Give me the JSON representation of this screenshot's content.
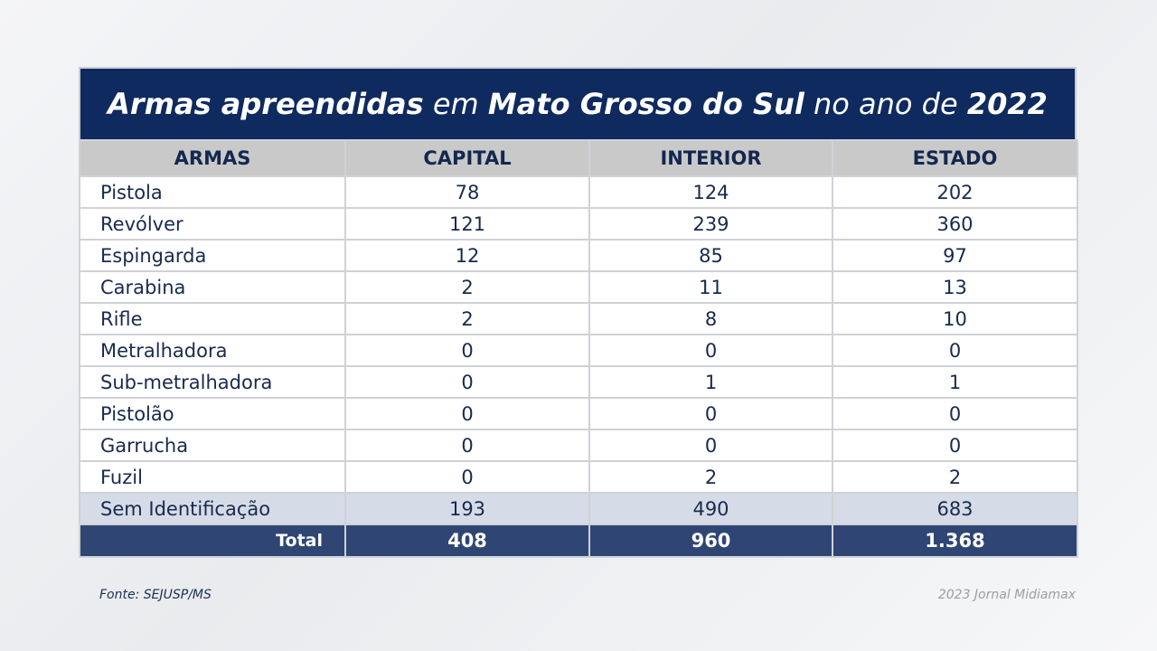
{
  "header": {
    "title": [
      "Armas apreendidas",
      "em",
      "Mato Grosso do Sul",
      "no ano de",
      "2022"
    ]
  },
  "table": {
    "columns": [
      "ARMAS",
      "CAPITAL",
      "INTERIOR",
      "ESTADO"
    ],
    "rows": [
      [
        "Pistola",
        78,
        124,
        202
      ],
      [
        "Revólver",
        121,
        239,
        360
      ],
      [
        "Espingarda",
        12,
        85,
        97
      ],
      [
        "Carabina",
        2,
        11,
        13
      ],
      [
        "Rifle",
        2,
        8,
        10
      ],
      [
        "Metralhadora",
        0,
        0,
        0
      ],
      [
        "Sub-metralhadora",
        0,
        1,
        1
      ],
      [
        "Pistolão",
        0,
        0,
        0
      ],
      [
        "Garrucha",
        0,
        0,
        0
      ],
      [
        "Fuzil",
        0,
        2,
        2
      ],
      [
        "Sem Identificação",
        193,
        490,
        683
      ]
    ],
    "total": [
      "Total",
      408,
      960,
      "1.368"
    ]
  },
  "footer": {
    "source": "Fonte: SEJUSP/MS",
    "credit": "2023 Jornal Midiamax"
  }
}
